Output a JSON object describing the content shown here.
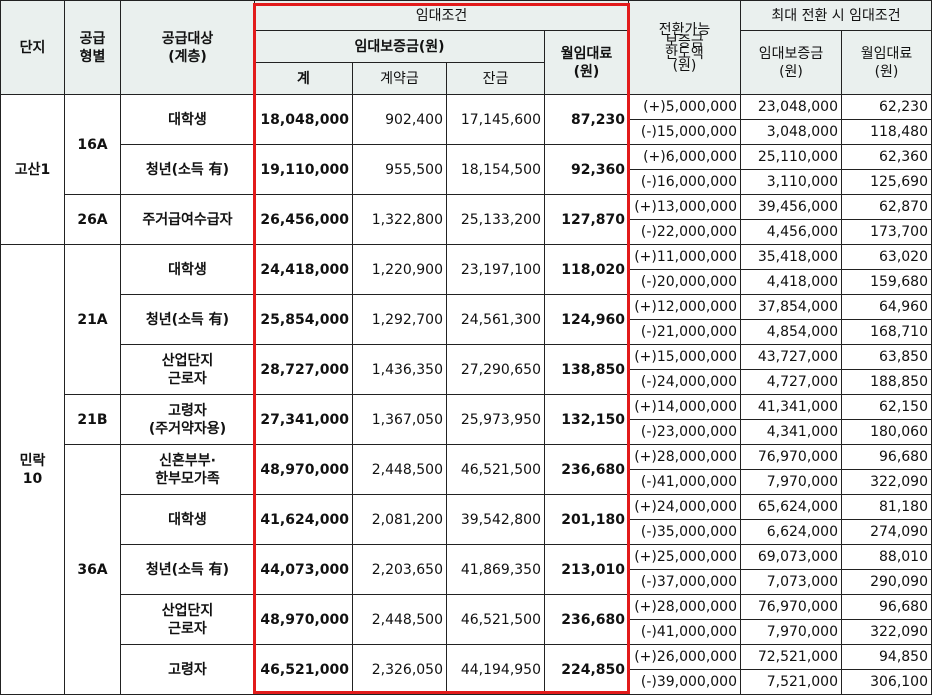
{
  "header": {
    "complex": "단지",
    "type_line1": "공급",
    "type_line2": "형별",
    "target_line1": "공급대상",
    "target_line2": "(계층)",
    "lease_conditions": "임대조건",
    "deposit_won": "임대보증금(원)",
    "monthly_rent_line1": "월임대료",
    "monthly_rent_line2": "(원)",
    "total": "계",
    "contract_fee": "계약금",
    "balance": "잔금",
    "conversion_limit_line1": "전환가능",
    "conversion_limit_line2": "보증금",
    "conversion_limit_line3": "한도액",
    "conversion_limit_line4": "(원)",
    "max_conversion": "최대 전환 시 임대조건",
    "max_deposit_line1": "임대보증금",
    "max_deposit_line2": "(원)",
    "max_rent_line1": "월임대료",
    "max_rent_line2": "(원)"
  },
  "complexes": [
    {
      "name": "고산1"
    },
    {
      "name_line1": "민락",
      "name_line2": "10"
    }
  ],
  "types": [
    "16A",
    "26A",
    "21A",
    "21B",
    "36A"
  ],
  "rows": [
    {
      "target": [
        "대학생"
      ],
      "total": "18,048,000",
      "contract": "902,400",
      "balance": "17,145,600",
      "rent": "87,230",
      "plus_limit": "(+)5,000,000",
      "plus_deposit": "23,048,000",
      "plus_rent": "62,230",
      "minus_limit": "(-)15,000,000",
      "minus_deposit": "3,048,000",
      "minus_rent": "118,480"
    },
    {
      "target": [
        "청년(소득 有)"
      ],
      "total": "19,110,000",
      "contract": "955,500",
      "balance": "18,154,500",
      "rent": "92,360",
      "plus_limit": "(+)6,000,000",
      "plus_deposit": "25,110,000",
      "plus_rent": "62,360",
      "minus_limit": "(-)16,000,000",
      "minus_deposit": "3,110,000",
      "minus_rent": "125,690"
    },
    {
      "target": [
        "주거급여수급자"
      ],
      "total": "26,456,000",
      "contract": "1,322,800",
      "balance": "25,133,200",
      "rent": "127,870",
      "plus_limit": "(+)13,000,000",
      "plus_deposit": "39,456,000",
      "plus_rent": "62,870",
      "minus_limit": "(-)22,000,000",
      "minus_deposit": "4,456,000",
      "minus_rent": "173,700"
    },
    {
      "target": [
        "대학생"
      ],
      "total": "24,418,000",
      "contract": "1,220,900",
      "balance": "23,197,100",
      "rent": "118,020",
      "plus_limit": "(+)11,000,000",
      "plus_deposit": "35,418,000",
      "plus_rent": "63,020",
      "minus_limit": "(-)20,000,000",
      "minus_deposit": "4,418,000",
      "minus_rent": "159,680"
    },
    {
      "target": [
        "청년(소득 有)"
      ],
      "total": "25,854,000",
      "contract": "1,292,700",
      "balance": "24,561,300",
      "rent": "124,960",
      "plus_limit": "(+)12,000,000",
      "plus_deposit": "37,854,000",
      "plus_rent": "64,960",
      "minus_limit": "(-)21,000,000",
      "minus_deposit": "4,854,000",
      "minus_rent": "168,710"
    },
    {
      "target": [
        "산업단지",
        "근로자"
      ],
      "total": "28,727,000",
      "contract": "1,436,350",
      "balance": "27,290,650",
      "rent": "138,850",
      "plus_limit": "(+)15,000,000",
      "plus_deposit": "43,727,000",
      "plus_rent": "63,850",
      "minus_limit": "(-)24,000,000",
      "minus_deposit": "4,727,000",
      "minus_rent": "188,850"
    },
    {
      "target": [
        "고령자",
        "(주거약자용)"
      ],
      "total": "27,341,000",
      "contract": "1,367,050",
      "balance": "25,973,950",
      "rent": "132,150",
      "plus_limit": "(+)14,000,000",
      "plus_deposit": "41,341,000",
      "plus_rent": "62,150",
      "minus_limit": "(-)23,000,000",
      "minus_deposit": "4,341,000",
      "minus_rent": "180,060"
    },
    {
      "target": [
        "신혼부부·",
        "한부모가족"
      ],
      "total": "48,970,000",
      "contract": "2,448,500",
      "balance": "46,521,500",
      "rent": "236,680",
      "plus_limit": "(+)28,000,000",
      "plus_deposit": "76,970,000",
      "plus_rent": "96,680",
      "minus_limit": "(-)41,000,000",
      "minus_deposit": "7,970,000",
      "minus_rent": "322,090"
    },
    {
      "target": [
        "대학생"
      ],
      "total": "41,624,000",
      "contract": "2,081,200",
      "balance": "39,542,800",
      "rent": "201,180",
      "plus_limit": "(+)24,000,000",
      "plus_deposit": "65,624,000",
      "plus_rent": "81,180",
      "minus_limit": "(-)35,000,000",
      "minus_deposit": "6,624,000",
      "minus_rent": "274,090"
    },
    {
      "target": [
        "청년(소득 有)"
      ],
      "total": "44,073,000",
      "contract": "2,203,650",
      "balance": "41,869,350",
      "rent": "213,010",
      "plus_limit": "(+)25,000,000",
      "plus_deposit": "69,073,000",
      "plus_rent": "88,010",
      "minus_limit": "(-)37,000,000",
      "minus_deposit": "7,073,000",
      "minus_rent": "290,090"
    },
    {
      "target": [
        "산업단지",
        "근로자"
      ],
      "total": "48,970,000",
      "contract": "2,448,500",
      "balance": "46,521,500",
      "rent": "236,680",
      "plus_limit": "(+)28,000,000",
      "plus_deposit": "76,970,000",
      "plus_rent": "96,680",
      "minus_limit": "(-)41,000,000",
      "minus_deposit": "7,970,000",
      "minus_rent": "322,090"
    },
    {
      "target": [
        "고령자"
      ],
      "total": "46,521,000",
      "contract": "2,326,050",
      "balance": "44,194,950",
      "rent": "224,850",
      "plus_limit": "(+)26,000,000",
      "plus_deposit": "72,521,000",
      "plus_rent": "94,850",
      "minus_limit": "(-)39,000,000",
      "minus_deposit": "7,521,000",
      "minus_rent": "306,100"
    }
  ],
  "colors": {
    "header_bg": "#eaf0ee",
    "highlight_border": "#e21b1b"
  }
}
